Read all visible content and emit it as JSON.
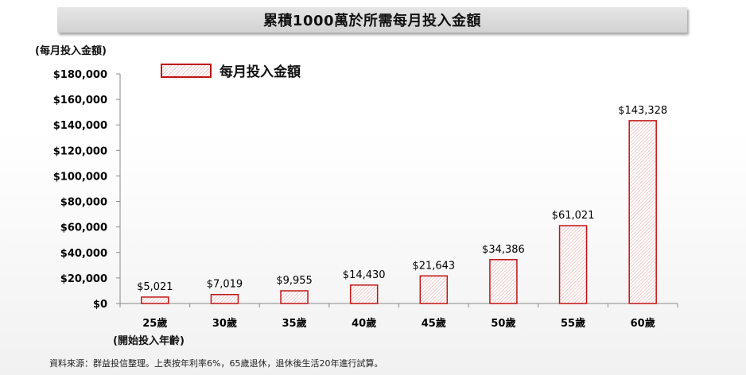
{
  "chart_data": {
    "type": "bar",
    "title": "累積1000萬於所需每月投入金額",
    "ylabel": "(每月投入金額)",
    "xlabel": "(開始投入年齡)",
    "categories": [
      "25歲",
      "30歲",
      "35歲",
      "40歲",
      "45歲",
      "50歲",
      "55歲",
      "60歲"
    ],
    "series": [
      {
        "name": "每月投入金額",
        "values": [
          5021,
          7019,
          9955,
          14430,
          21643,
          34386,
          61021,
          143328
        ],
        "labels": [
          "$5,021",
          "$7,019",
          "$9,955",
          "$14,430",
          "$21,643",
          "$34,386",
          "$61,021",
          "$143,328"
        ]
      }
    ],
    "ylim": [
      0,
      180000
    ],
    "yticks": [
      0,
      20000,
      40000,
      60000,
      80000,
      100000,
      120000,
      140000,
      160000,
      180000
    ],
    "ytick_labels": [
      "$0",
      "$20,000",
      "$40,000",
      "$60,000",
      "$80,000",
      "$100,000",
      "$120,000",
      "$140,000",
      "$160,000",
      "$180,000"
    ],
    "grid": false,
    "legend_position": "top-left",
    "colors": {
      "bar_border": "#c01414",
      "bar_hatch": "#f0c8c8"
    }
  },
  "footnote": "資料來源：群益投信整理。上表按年利率6%，65歲退休，退休後生活20年進行試算。"
}
